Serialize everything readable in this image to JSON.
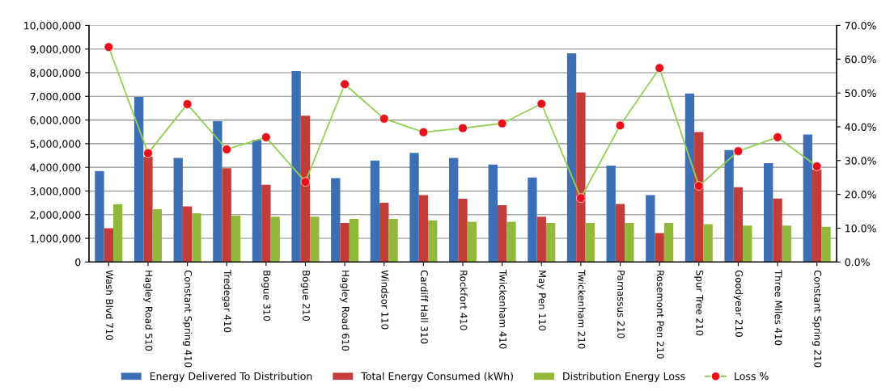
{
  "chart_data": {
    "type": "bar",
    "categories": [
      "Wash Blvd 710",
      "Hagley Road 510",
      "Constant Spring 410",
      "Tredegar 410",
      "Bogue 310",
      "Bogue 210",
      "Hagley Road 610",
      "Windsor 110",
      "Cardiff Hall 310",
      "Rockfort 410",
      "Twickenham 410",
      "May Pen 110",
      "Twickenham 210",
      "Parnassus 210",
      "Rosemont Pen 210",
      "Spur Tree 210",
      "Goodyear 210",
      "Three Miles 410",
      "Constant Spring 210"
    ],
    "series": [
      {
        "name": "Energy Delivered To Distribution",
        "color": "#3d6fb5",
        "values": [
          3840000,
          6980000,
          4400000,
          5950000,
          5160000,
          8070000,
          3540000,
          4290000,
          4610000,
          4400000,
          4120000,
          3570000,
          8820000,
          4070000,
          2830000,
          7120000,
          4730000,
          4180000,
          5390000
        ]
      },
      {
        "name": "Total Energy Consumed (kWh)",
        "color": "#c43c3a",
        "values": [
          1430000,
          4450000,
          2350000,
          3960000,
          3260000,
          6180000,
          1650000,
          2500000,
          2830000,
          2670000,
          2400000,
          1910000,
          7160000,
          2450000,
          1220000,
          5490000,
          3160000,
          2680000,
          3900000
        ]
      },
      {
        "name": "Distribution Energy Loss",
        "color": "#93b93c",
        "values": [
          2440000,
          2230000,
          2060000,
          1960000,
          1910000,
          1910000,
          1820000,
          1820000,
          1760000,
          1700000,
          1700000,
          1650000,
          1650000,
          1650000,
          1650000,
          1600000,
          1540000,
          1540000,
          1490000
        ]
      },
      {
        "name": "Loss %",
        "type": "line",
        "axis": "y2",
        "color": "#92d050",
        "marker": "circle",
        "colors": [
          "#e8101a",
          "#e8101a",
          "#e8101a",
          "#e8101a",
          "#e8101a",
          "#e8101a",
          "#e8101a",
          "#e8101a",
          "#e8101a",
          "#e8101a",
          "#e8101a",
          "#e8101a",
          "#e8101a",
          "#e8101a",
          "#e8101a",
          "#e8101a",
          "#e8101a",
          "#e8101a",
          "#e8101a"
        ],
        "values": [
          63.6,
          32.2,
          46.7,
          33.3,
          36.9,
          23.7,
          52.6,
          42.4,
          38.4,
          39.6,
          41.0,
          46.8,
          18.9,
          40.4,
          57.4,
          22.5,
          32.8,
          36.9,
          28.3
        ]
      }
    ],
    "ylim": [
      0,
      10000000
    ],
    "yticks": [
      {
        "value": 0,
        "label": "0"
      },
      {
        "value": 1000000,
        "label": "1,000,000"
      },
      {
        "value": 2000000,
        "label": "2,000,000"
      },
      {
        "value": 3000000,
        "label": "3,000,000"
      },
      {
        "value": 4000000,
        "label": "4,000,000"
      },
      {
        "value": 5000000,
        "label": "5,000,000"
      },
      {
        "value": 6000000,
        "label": "6,000,000"
      },
      {
        "value": 7000000,
        "label": "7,000,000"
      },
      {
        "value": 8000000,
        "label": "8,000,000"
      },
      {
        "value": 9000000,
        "label": "9,000,000"
      },
      {
        "value": 10000000,
        "label": "10,000,000"
      }
    ],
    "y2lim": [
      0,
      70
    ],
    "y2ticks": [
      {
        "value": 0,
        "label": "0.0%"
      },
      {
        "value": 10,
        "label": "10.0%"
      },
      {
        "value": 20,
        "label": "20.0%"
      },
      {
        "value": 30,
        "label": "30.0%"
      },
      {
        "value": 40,
        "label": "40.0%"
      },
      {
        "value": 50,
        "label": "50.0%"
      },
      {
        "value": 60,
        "label": "60.0%"
      },
      {
        "value": 70,
        "label": "70.0%"
      }
    ],
    "grid": "y",
    "legend": "bottom"
  }
}
